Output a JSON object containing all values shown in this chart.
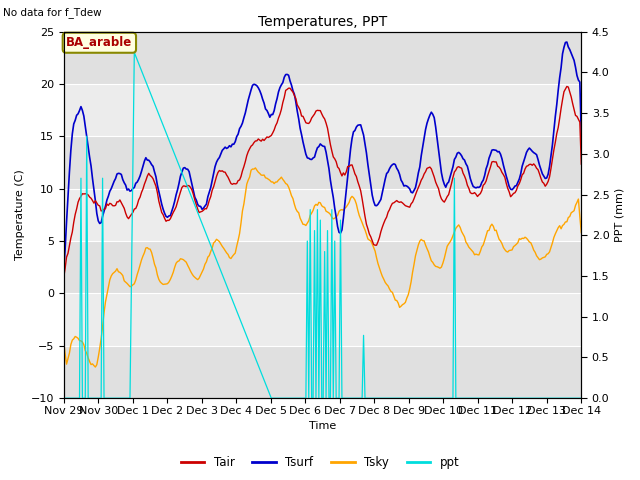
{
  "title": "Temperatures, PPT",
  "subtitle": "No data for f_Tdew",
  "annotation": "BA_arable",
  "xlabel": "Time",
  "ylabel_left": "Temperature (C)",
  "ylabel_right": "PPT (mm)",
  "ylim_left": [
    -10,
    25
  ],
  "ylim_right": [
    0.0,
    4.5
  ],
  "yticks_left": [
    -10,
    -5,
    0,
    5,
    10,
    15,
    20,
    25
  ],
  "yticks_right": [
    0.0,
    0.5,
    1.0,
    1.5,
    2.0,
    2.5,
    3.0,
    3.5,
    4.0,
    4.5
  ],
  "xtick_labels": [
    "Nov 29",
    "Nov 30",
    "Dec 1",
    "Dec 2",
    "Dec 3",
    "Dec 4",
    "Dec 5",
    "Dec 6",
    "Dec 7",
    "Dec 8",
    "Dec 9",
    "Dec 10",
    "Dec 11",
    "Dec 12",
    "Dec 13",
    "Dec 14"
  ],
  "n_days": 15,
  "colors": {
    "Tair": "#cc0000",
    "Tsurf": "#0000cc",
    "Tsky": "#ffa500",
    "ppt": "#00dddd"
  },
  "bg_bands": [
    {
      "ymin": -10,
      "ymax": -5,
      "color": "#e0e0e0"
    },
    {
      "ymin": -5,
      "ymax": 0,
      "color": "#ececec"
    },
    {
      "ymin": 0,
      "ymax": 5,
      "color": "#e0e0e0"
    },
    {
      "ymin": 5,
      "ymax": 10,
      "color": "#ececec"
    },
    {
      "ymin": 10,
      "ymax": 15,
      "color": "#e0e0e0"
    },
    {
      "ymin": 15,
      "ymax": 20,
      "color": "#ececec"
    },
    {
      "ymin": 20,
      "ymax": 25,
      "color": "#e0e0e0"
    }
  ]
}
